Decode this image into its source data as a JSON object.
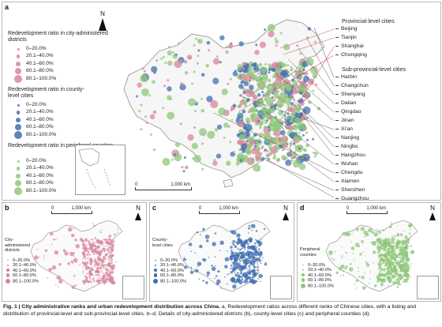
{
  "panel_a": {
    "label": "a",
    "north": "N",
    "scale": {
      "zero": "0",
      "distance": "1,000 km"
    },
    "legend_district": {
      "title": "Redevelopment ratio in city-administered districts",
      "color": "#d8849c",
      "items": [
        "0–20.0%",
        "20.1–40.0%",
        "40.1–60.0%",
        "60.1–80.0%",
        "80.1–100.0%"
      ]
    },
    "legend_county": {
      "title": "Redevelopment ratio in county-level cities",
      "color": "#3f6fb0",
      "items": [
        "0–20.0%",
        "20.1–40.0%",
        "40.1–60.0%",
        "60.1–80.0%",
        "80.1–100.0%"
      ]
    },
    "legend_peripheral": {
      "title": "Redevelopment ratio in peripheral counties",
      "color": "#8fc77a",
      "items": [
        "0–20.0%",
        "20.1–40.0%",
        "40.1–60.0%",
        "60.1–80.0%",
        "80.1–100.0%"
      ]
    },
    "provincial_heading": "Provincial-level cities",
    "provincial_cities": [
      "Beijing",
      "Tianjin",
      "Shanghai",
      "Chongqing"
    ],
    "subprovincial_heading": "Sub-provincial-level cities",
    "subprovincial_cities": [
      "Harbin",
      "Changchun",
      "Shenyang",
      "Dalian",
      "Qingdao",
      "Jinan",
      "Xi'an",
      "Nanjing",
      "Ningbo",
      "Hangzhou",
      "Wuhan",
      "Chengdu",
      "Xiamen",
      "Shenzhen",
      "Guangzhou"
    ],
    "colors": {
      "district": "#d8849c",
      "county": "#3f6fb0",
      "peripheral": "#8fc77a",
      "outline": "#9a9a9a",
      "leader": "#e05a6a"
    }
  },
  "panel_b": {
    "label": "b",
    "north": "N",
    "scale": {
      "zero": "0",
      "distance": "1,000 km"
    },
    "legend_title": "City-administered districts",
    "items": [
      "0–20.0%",
      "20.1–40.0%",
      "40.1–60.0%",
      "60.1–80.0%",
      "80.1–100.0%"
    ]
  },
  "panel_c": {
    "label": "c",
    "north": "N",
    "scale": {
      "zero": "0",
      "distance": "1,000 km"
    },
    "legend_title": "County-level cities",
    "items": [
      "0–20.0%",
      "20.1–40.0%",
      "40.1–60.0%",
      "60.1–80.0%",
      "80.1–100.0%"
    ]
  },
  "panel_d": {
    "label": "d",
    "north": "N",
    "scale": {
      "zero": "0",
      "distance": "1,000 km"
    },
    "legend_title": "Peripheral counties",
    "items": [
      "0–20.0%",
      "20.1–40.0%",
      "40.1–60.0%",
      "60.1–80.0%",
      "80.1–100.0%"
    ]
  },
  "caption": {
    "bold": "Fig. 1 | City administrative ranks and urban redevelopment distribution across China.",
    "text": " a, Redevelopment ratios across different ranks of Chinese cities, with a listing and distribution of provincial-level and sub-provincial-level cities. b–d, Details of city-administered districts (b), county-level cities (c) and peripheral counties (d)."
  }
}
